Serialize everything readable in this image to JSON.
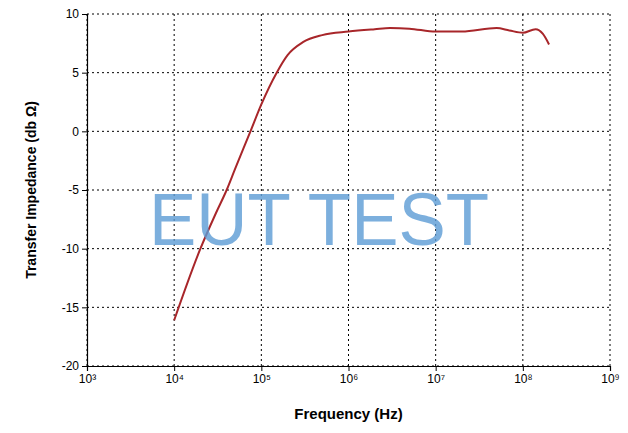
{
  "chart_data": {
    "type": "line",
    "x_label": "Frequency (Hz)",
    "y_label": "Transfer Impedance (db Ω)",
    "annotations": [
      "EUT TEST"
    ],
    "log": "x",
    "grid": true,
    "color": "#a8262a",
    "x": [
      10000,
      20000,
      30000,
      40000,
      50000,
      75000,
      100000,
      150000,
      200000,
      300000,
      500000,
      1000000,
      2000000,
      3000000,
      5000000,
      10000000,
      20000000,
      50000000,
      70000000,
      100000000,
      140000000,
      170000000,
      200000000
    ],
    "values": [
      -16.1,
      -10.0,
      -7.0,
      -5.0,
      -3.2,
      0.0,
      2.3,
      5.0,
      6.5,
      7.6,
      8.2,
      8.5,
      8.7,
      8.8,
      8.75,
      8.5,
      8.5,
      8.8,
      8.6,
      8.4,
      8.7,
      8.3,
      7.4
    ],
    "xlim": [
      1000,
      1000000000
    ],
    "ylim": [
      -20,
      10
    ],
    "xticks": [
      {
        "value": 1000,
        "label": "10³"
      },
      {
        "value": 10000,
        "label": "10⁴"
      },
      {
        "value": 100000,
        "label": "10⁵"
      },
      {
        "value": 1000000,
        "label": "10⁶"
      },
      {
        "value": 10000000,
        "label": "10⁷"
      },
      {
        "value": 100000000,
        "label": "10⁸"
      },
      {
        "value": 1000000000,
        "label": "10⁹"
      }
    ],
    "yticks": [
      -20,
      -15,
      -10,
      -5,
      0,
      5,
      10
    ]
  }
}
